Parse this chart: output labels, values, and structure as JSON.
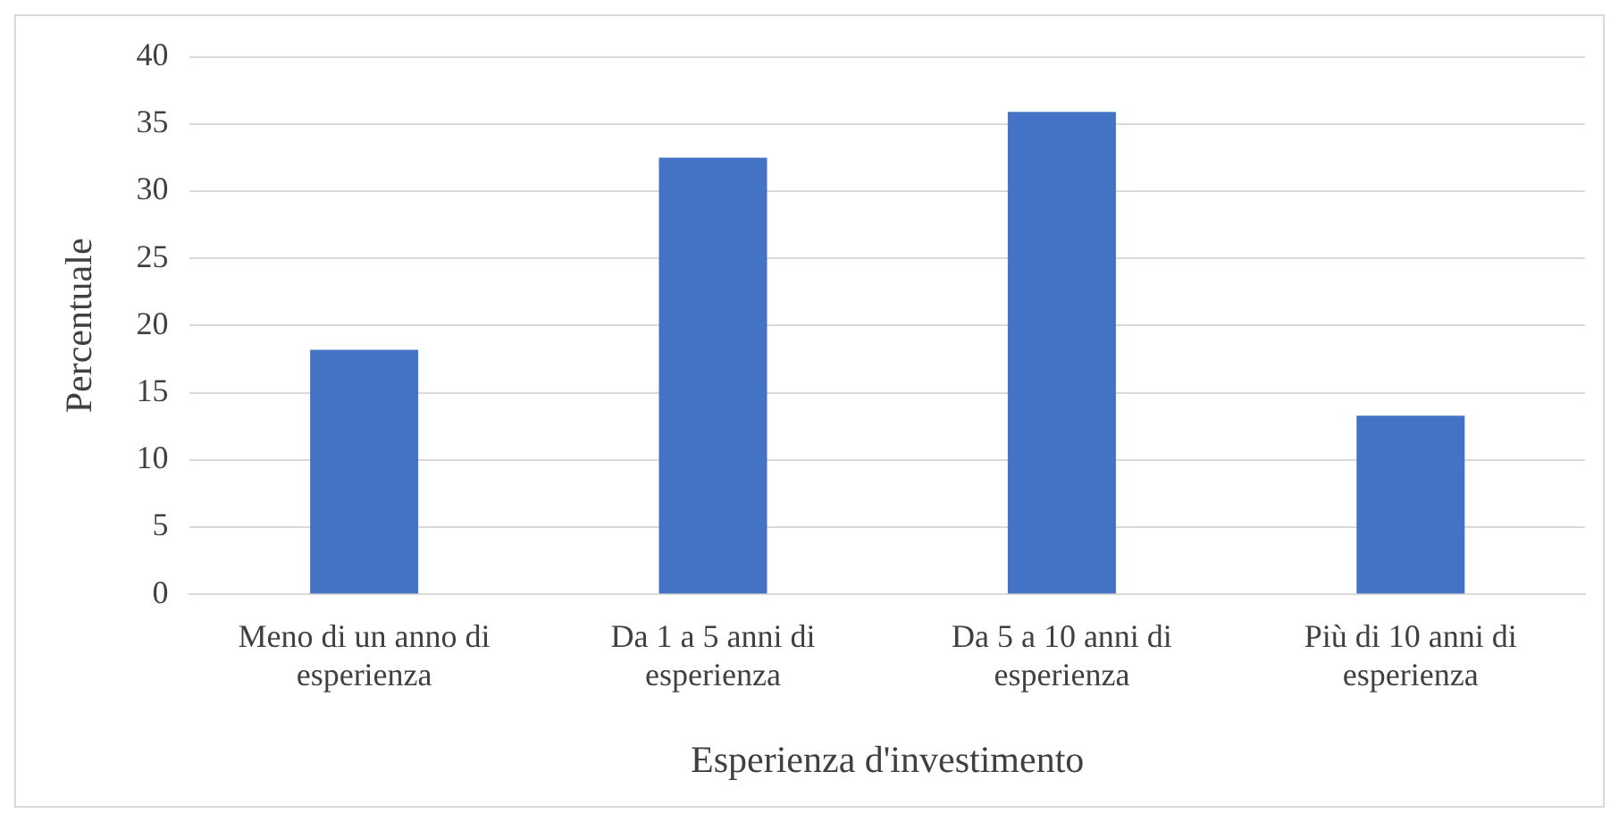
{
  "chart_data": {
    "type": "bar",
    "xlabel": "Esperienza d'investimento",
    "ylabel": "Percentuale",
    "categories": [
      "Meno di un anno di esperienza",
      "Da 1 a 5 anni di esperienza",
      "Da 5 a 10 anni di esperienza",
      "Più di 10 anni di esperienza"
    ],
    "values": [
      18.2,
      32.5,
      35.9,
      13.3
    ],
    "color": "#4472c4",
    "ylim": [
      0,
      40
    ],
    "yticks": [
      0,
      5,
      10,
      15,
      20,
      25,
      30,
      35,
      40
    ],
    "grid": "y",
    "legend": false
  }
}
